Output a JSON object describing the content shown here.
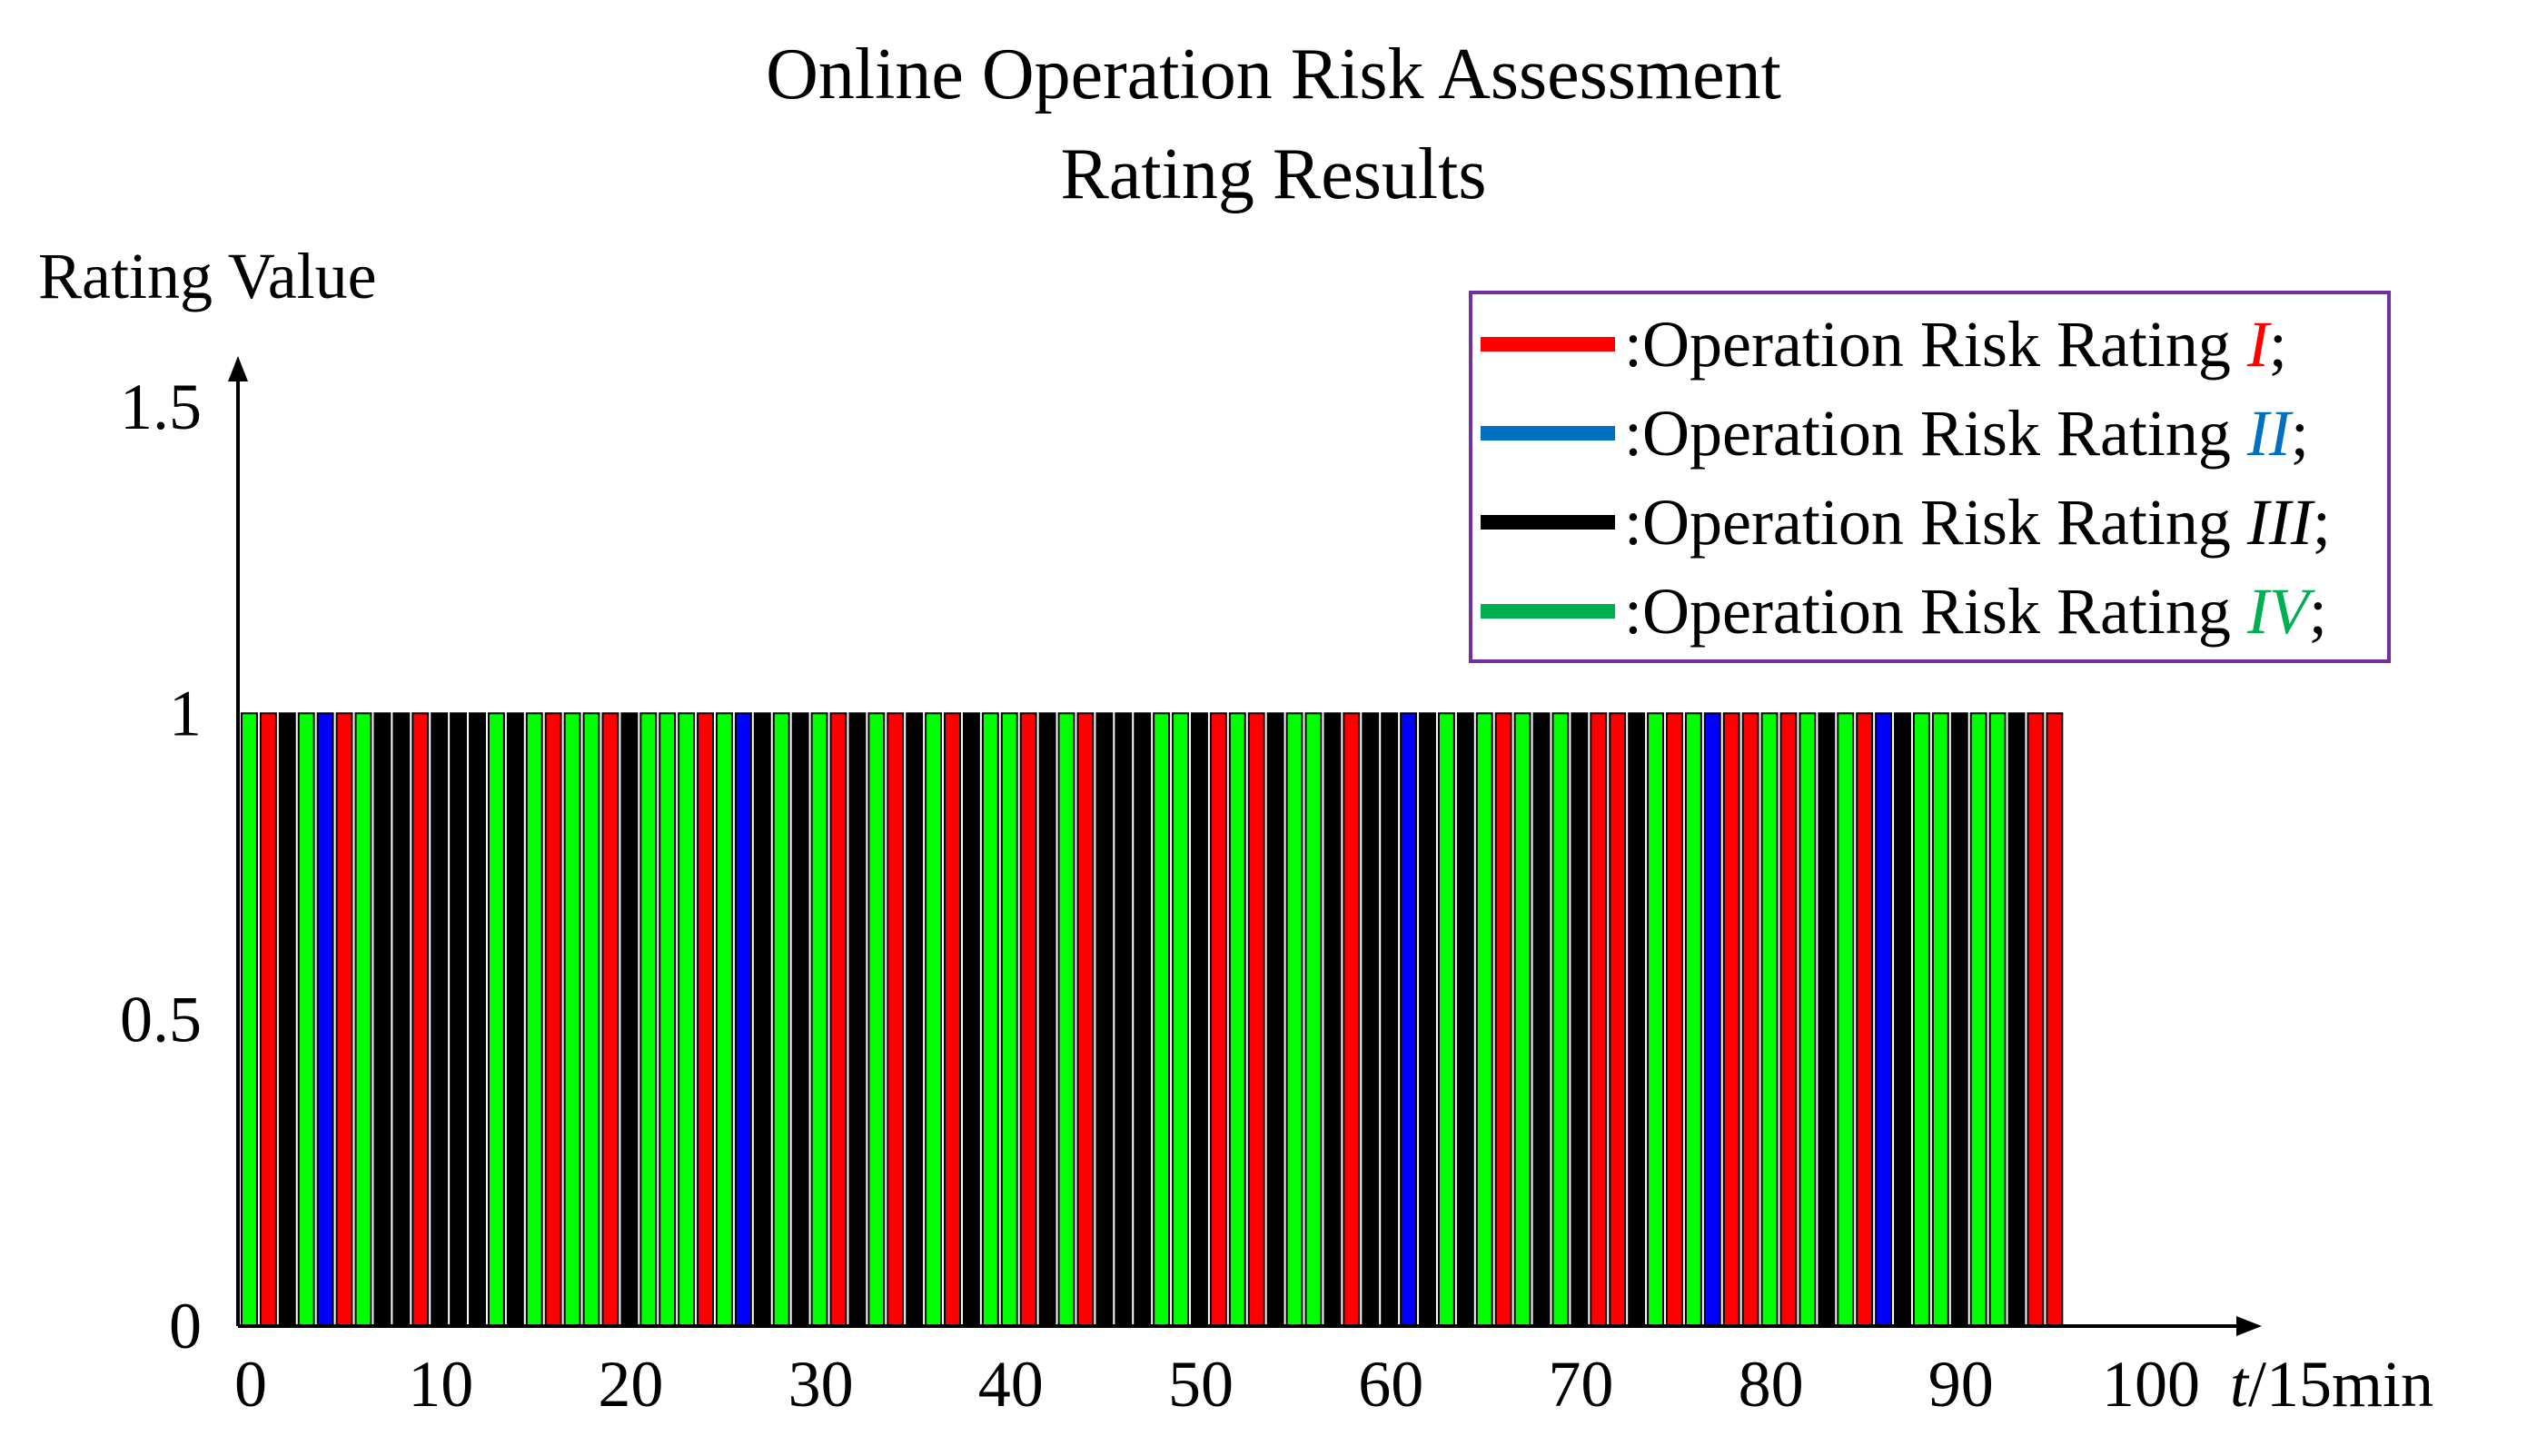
{
  "chart_data": {
    "type": "bar",
    "title_line1": "Online Operation Risk Assessment",
    "title_line2": "Rating Results",
    "ylabel": "Rating Value",
    "xlabel_italic": "t",
    "xlabel_rest": "/15min",
    "xlim": [
      0,
      100
    ],
    "ylim": [
      0,
      1.5
    ],
    "x_ticks": [
      "0",
      "10",
      "20",
      "30",
      "40",
      "50",
      "60",
      "70",
      "80",
      "90",
      "100"
    ],
    "y_ticks": [
      "0",
      "0.5",
      "1",
      "1.5"
    ],
    "colors": {
      "I": "#ff0000",
      "II": "#0000ff",
      "III": "#000000",
      "IV": "#00ff00"
    },
    "legend_title_color": "#7030a0",
    "legend": [
      {
        "label": ":Operation Risk Rating ",
        "numeral": "I",
        "suffix": ";",
        "key": "I",
        "line_color": "#ff0000",
        "numeral_color": "#ff0000"
      },
      {
        "label": ":Operation Risk Rating ",
        "numeral": "II",
        "suffix": ";",
        "key": "II",
        "line_color": "#0070c0",
        "numeral_color": "#0070c0"
      },
      {
        "label": ":Operation Risk Rating ",
        "numeral": "III",
        "suffix": ";",
        "key": "III",
        "line_color": "#000000",
        "numeral_color": "#000000"
      },
      {
        "label": ":Operation Risk Rating ",
        "numeral": "IV",
        "suffix": ";",
        "key": "IV",
        "line_color": "#00b050",
        "numeral_color": "#00b050"
      }
    ],
    "x": [
      1,
      2,
      3,
      4,
      5,
      6,
      7,
      8,
      9,
      10,
      11,
      12,
      13,
      14,
      15,
      16,
      17,
      18,
      19,
      20,
      21,
      22,
      23,
      24,
      25,
      26,
      27,
      28,
      29,
      30,
      31,
      32,
      33,
      34,
      35,
      36,
      37,
      38,
      39,
      40,
      41,
      42,
      43,
      44,
      45,
      46,
      47,
      48,
      49,
      50,
      51,
      52,
      53,
      54,
      55,
      56,
      57,
      58,
      59,
      60,
      61,
      62,
      63,
      64,
      65,
      66,
      67,
      68,
      69,
      70,
      71,
      72,
      73,
      74,
      75,
      76,
      77,
      78,
      79,
      80,
      81,
      82,
      83,
      84,
      85,
      86,
      87,
      88,
      89,
      90,
      91,
      92,
      93,
      94,
      95,
      96
    ],
    "values": [
      1,
      1,
      1,
      1,
      1,
      1,
      1,
      1,
      1,
      1,
      1,
      1,
      1,
      1,
      1,
      1,
      1,
      1,
      1,
      1,
      1,
      1,
      1,
      1,
      1,
      1,
      1,
      1,
      1,
      1,
      1,
      1,
      1,
      1,
      1,
      1,
      1,
      1,
      1,
      1,
      1,
      1,
      1,
      1,
      1,
      1,
      1,
      1,
      1,
      1,
      1,
      1,
      1,
      1,
      1,
      1,
      1,
      1,
      1,
      1,
      1,
      1,
      1,
      1,
      1,
      1,
      1,
      1,
      1,
      1,
      1,
      1,
      1,
      1,
      1,
      1,
      1,
      1,
      1,
      1,
      1,
      1,
      1,
      1,
      1,
      1,
      1,
      1,
      1,
      1,
      1,
      1,
      1,
      1,
      1,
      1
    ],
    "ratings": [
      "IV",
      "I",
      "III",
      "IV",
      "II",
      "I",
      "IV",
      "III",
      "III",
      "I",
      "III",
      "III",
      "III",
      "IV",
      "III",
      "IV",
      "I",
      "IV",
      "IV",
      "I",
      "III",
      "IV",
      "IV",
      "IV",
      "I",
      "IV",
      "II",
      "III",
      "IV",
      "III",
      "IV",
      "I",
      "III",
      "IV",
      "I",
      "III",
      "IV",
      "I",
      "III",
      "IV",
      "IV",
      "I",
      "III",
      "IV",
      "I",
      "III",
      "III",
      "III",
      "IV",
      "IV",
      "III",
      "I",
      "IV",
      "I",
      "III",
      "IV",
      "IV",
      "III",
      "I",
      "III",
      "III",
      "II",
      "III",
      "IV",
      "III",
      "IV",
      "I",
      "IV",
      "III",
      "IV",
      "III",
      "I",
      "I",
      "III",
      "IV",
      "I",
      "IV",
      "II",
      "I",
      "I",
      "IV",
      "I",
      "IV",
      "III",
      "IV",
      "I",
      "II",
      "III",
      "IV",
      "IV",
      "III",
      "IV",
      "IV",
      "III",
      "I",
      "I"
    ]
  }
}
